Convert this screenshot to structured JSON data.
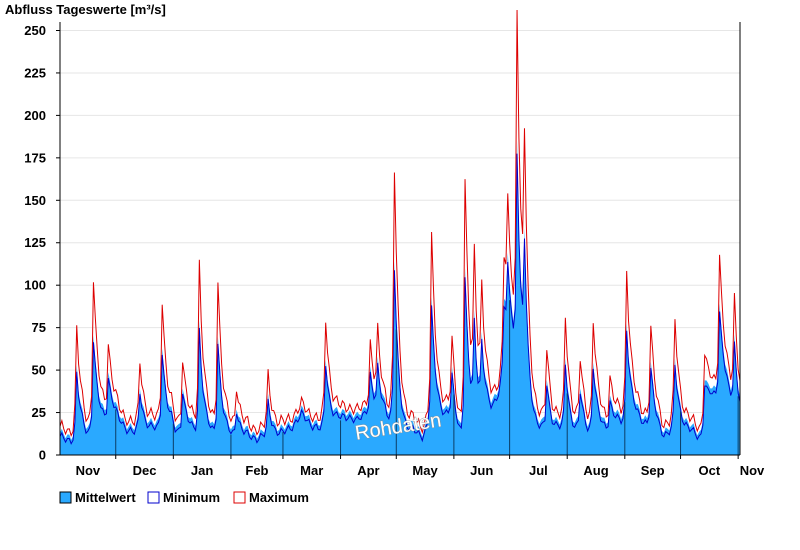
{
  "chart_data": {
    "type": "area",
    "title": "Abfluss Tageswerte [m³/s]",
    "xlabel": "",
    "ylabel": "",
    "ylim": [
      0,
      255
    ],
    "yticks": [
      0,
      25,
      50,
      75,
      100,
      125,
      150,
      175,
      200,
      225,
      250
    ],
    "x_month_labels": [
      "Nov",
      "Dec",
      "Jan",
      "Feb",
      "Mar",
      "Apr",
      "May",
      "Jun",
      "Jul",
      "Aug",
      "Sep",
      "Oct",
      "Nov"
    ],
    "x_domain_days": [
      0,
      366
    ],
    "grid": "horizontal",
    "legend_position": "bottom-left",
    "watermark": "Rohdaten",
    "series": [
      {
        "name": "Mittelwert",
        "color": "#2aa9ff",
        "base_points": [
          [
            0,
            12
          ],
          [
            10,
            11
          ],
          [
            17,
            13
          ],
          [
            28,
            24
          ],
          [
            40,
            15
          ],
          [
            45,
            16
          ],
          [
            60,
            18
          ],
          [
            62,
            14
          ],
          [
            70,
            15
          ],
          [
            80,
            12
          ],
          [
            90,
            11
          ],
          [
            95,
            12
          ],
          [
            100,
            12
          ],
          [
            110,
            13
          ],
          [
            120,
            14
          ],
          [
            130,
            26
          ],
          [
            140,
            17
          ],
          [
            145,
            19
          ],
          [
            150,
            22
          ],
          [
            155,
            26
          ],
          [
            160,
            22
          ],
          [
            165,
            29
          ],
          [
            170,
            24
          ],
          [
            175,
            26
          ],
          [
            182,
            12
          ],
          [
            186,
            13
          ],
          [
            190,
            15
          ],
          [
            195,
            14
          ],
          [
            200,
            22
          ],
          [
            210,
            24
          ],
          [
            216,
            10
          ],
          [
            218,
            11
          ],
          [
            225,
            14
          ],
          [
            232,
            24
          ],
          [
            238,
            46
          ],
          [
            243,
            62
          ],
          [
            246,
            37
          ],
          [
            252,
            14
          ],
          [
            260,
            15
          ],
          [
            265,
            15
          ],
          [
            268,
            17
          ],
          [
            270,
            16
          ],
          [
            274,
            14
          ],
          [
            280,
            13
          ],
          [
            290,
            14
          ],
          [
            298,
            19
          ],
          [
            306,
            22
          ],
          [
            315,
            21
          ],
          [
            322,
            15
          ],
          [
            325,
            13
          ],
          [
            330,
            16
          ],
          [
            335,
            17
          ],
          [
            340,
            15
          ],
          [
            345,
            13
          ],
          [
            350,
            32
          ],
          [
            357,
            40
          ],
          [
            366,
            22
          ]
        ],
        "peaks": [
          [
            9,
            40
          ],
          [
            18,
            57
          ],
          [
            26,
            25
          ],
          [
            43,
            25
          ],
          [
            55,
            48
          ],
          [
            66,
            27
          ],
          [
            75,
            64
          ],
          [
            85,
            58
          ],
          [
            95,
            17
          ],
          [
            112,
            20
          ],
          [
            143,
            40
          ],
          [
            167,
            24
          ],
          [
            171,
            25
          ],
          [
            180,
            98
          ],
          [
            200,
            68
          ],
          [
            211,
            27
          ],
          [
            218,
            97
          ],
          [
            223,
            56
          ],
          [
            227,
            40
          ],
          [
            239,
            41
          ],
          [
            241,
            41
          ],
          [
            246,
            141
          ],
          [
            250,
            80
          ],
          [
            262,
            29
          ],
          [
            272,
            42
          ],
          [
            280,
            25
          ],
          [
            287,
            41
          ],
          [
            296,
            16
          ],
          [
            305,
            57
          ],
          [
            318,
            35
          ],
          [
            331,
            40
          ],
          [
            347,
            25
          ],
          [
            355,
            51
          ],
          [
            363,
            39
          ]
        ],
        "min_offset": 2,
        "max_ratio": 1.5
      },
      {
        "name": "Minimum",
        "color": "#0000cc"
      },
      {
        "name": "Maximum",
        "color": "#dd0000"
      }
    ]
  },
  "legend": {
    "items": [
      {
        "label": "Mittelwert",
        "swatch": "#2aa9ff"
      },
      {
        "label": "Minimum",
        "swatch": "#ffffff",
        "border": "#0000cc"
      },
      {
        "label": "Maximum",
        "swatch": "#ffffff",
        "border": "#dd0000"
      }
    ]
  }
}
